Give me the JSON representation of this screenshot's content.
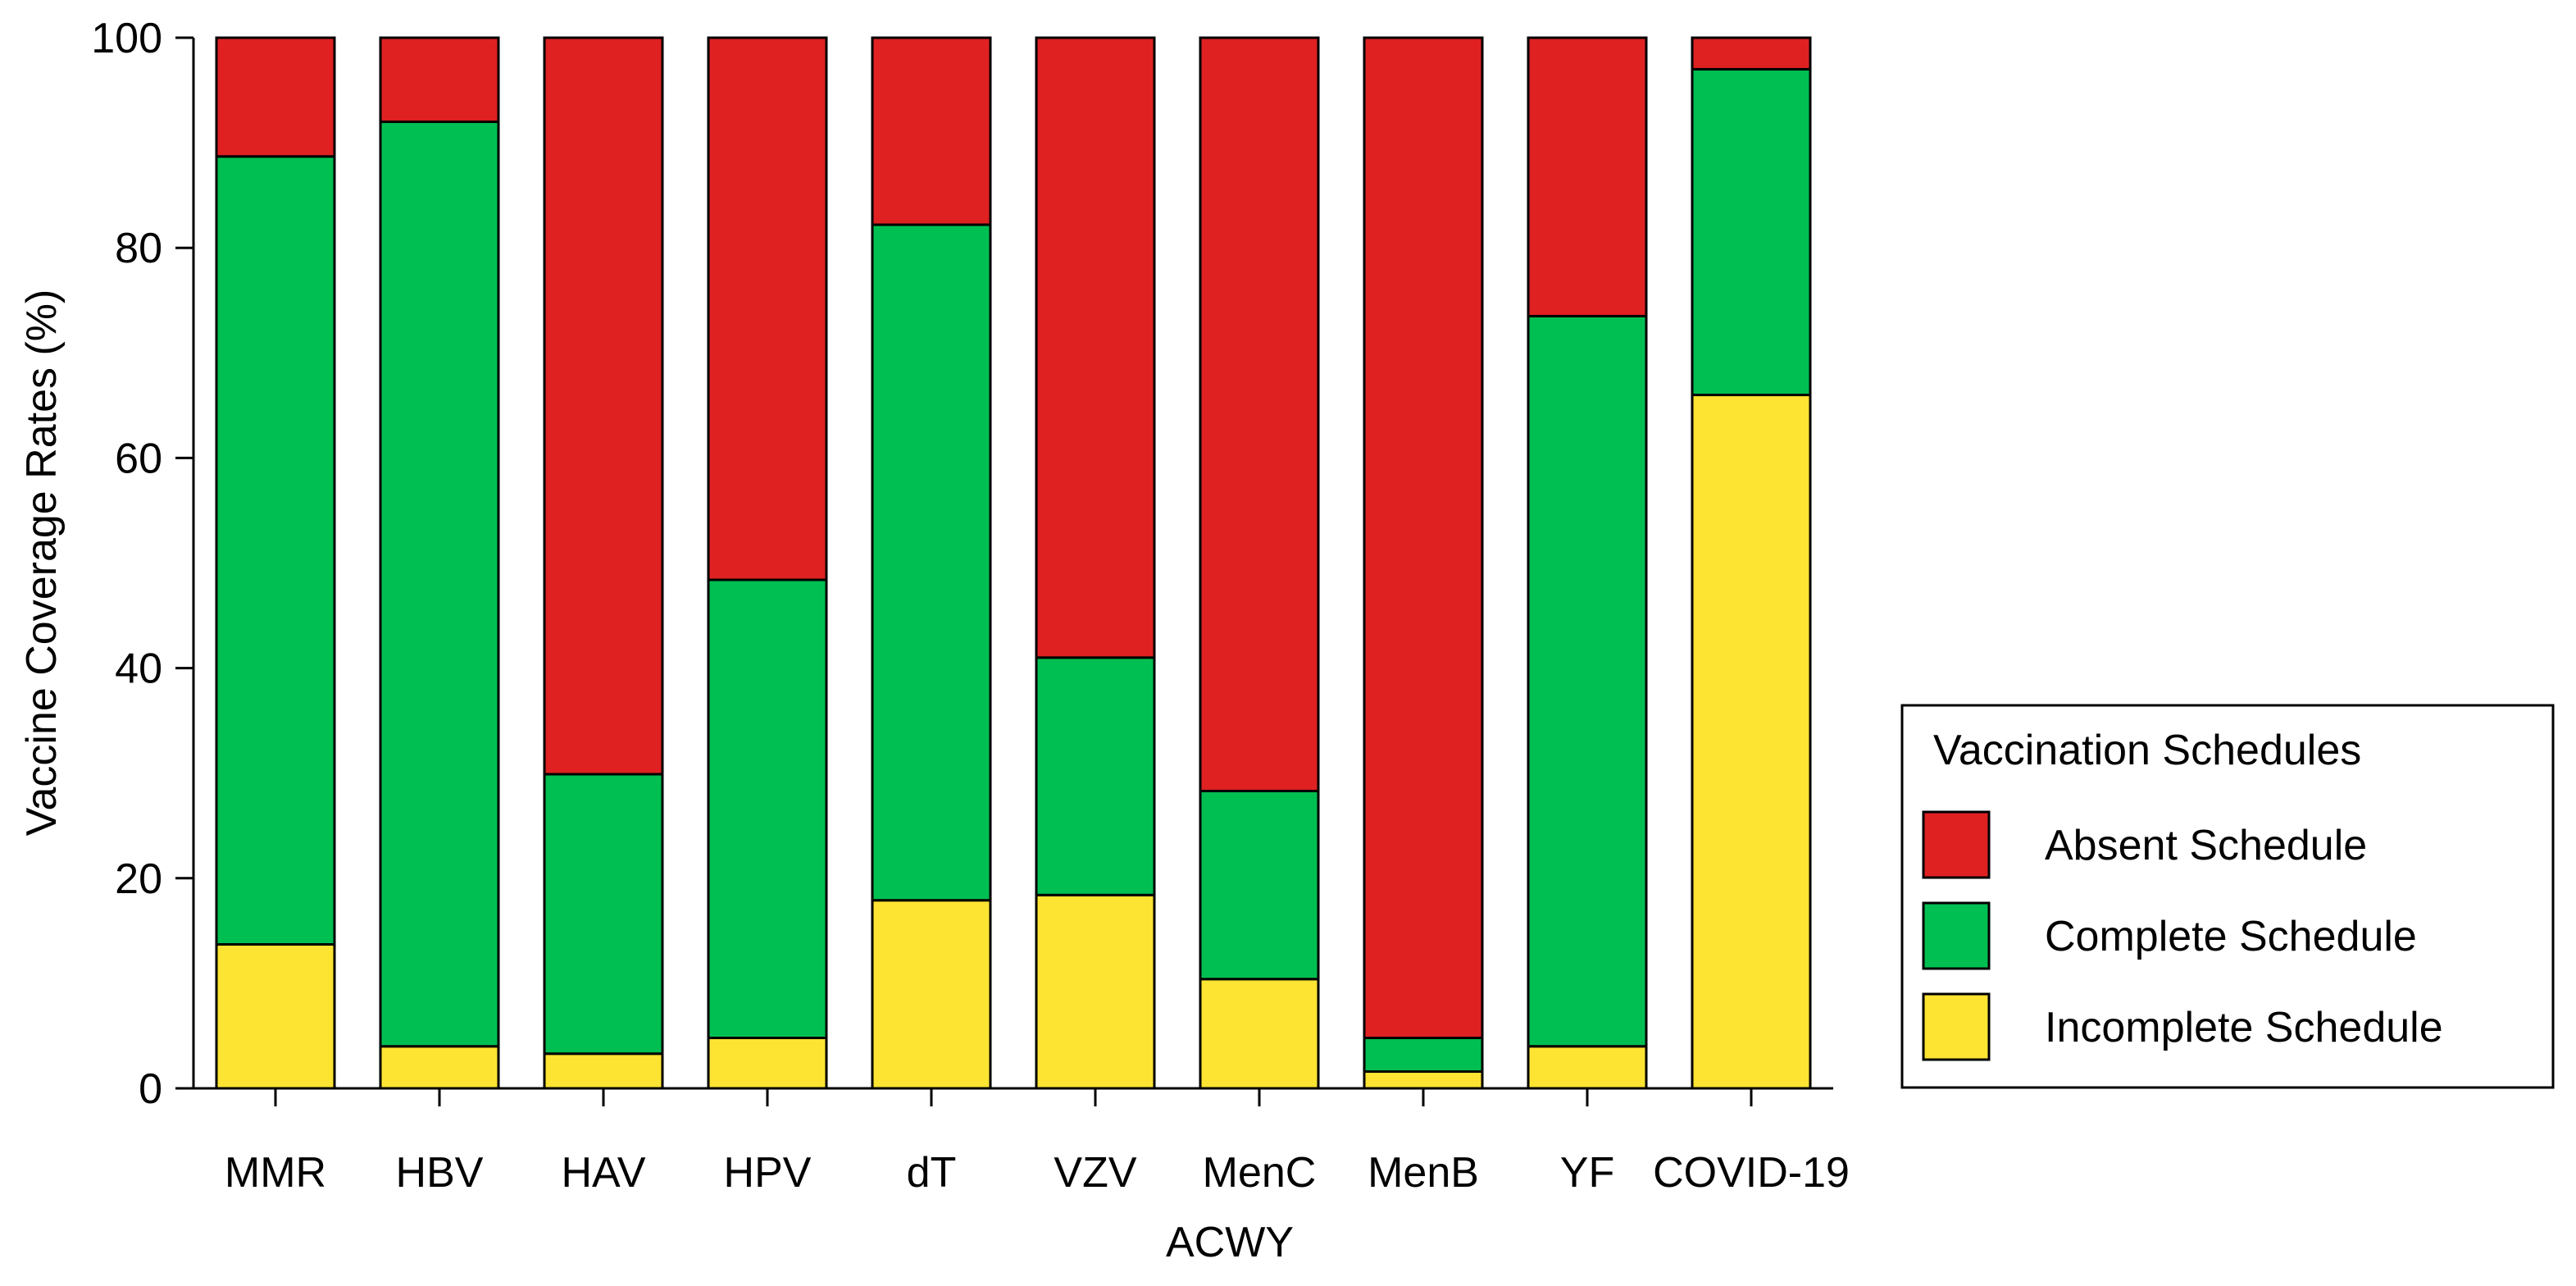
{
  "chart_data": {
    "type": "bar",
    "stacked": true,
    "title": "",
    "xlabel": "ACWY",
    "ylabel": "Vaccine Coverage Rates (%)",
    "ylim": [
      0,
      100
    ],
    "yticks": [
      0,
      20,
      40,
      60,
      80,
      100
    ],
    "categories": [
      "MMR",
      "HBV",
      "HAV",
      "HPV",
      "dT",
      "VZV",
      "MenC",
      "MenB",
      "YF",
      "COVID-19"
    ],
    "series": [
      {
        "name": "Incomplete Schedule",
        "color": "#FDE433",
        "values": [
          13.7,
          4.0,
          3.3,
          4.8,
          17.9,
          18.4,
          10.4,
          1.6,
          4.0,
          66.0
        ]
      },
      {
        "name": "Complete Schedule",
        "color": "#00BF52",
        "values": [
          75.0,
          88.0,
          26.6,
          43.6,
          64.3,
          22.6,
          17.9,
          3.2,
          69.5,
          31.0
        ]
      },
      {
        "name": "Absent Schedule",
        "color": "#DF2121",
        "values": [
          11.3,
          8.0,
          70.1,
          51.6,
          17.8,
          59.0,
          71.7,
          95.2,
          26.5,
          3.0
        ]
      }
    ],
    "legend": {
      "title": "Vaccination Schedules",
      "position": "right",
      "entries": [
        "Absent Schedule",
        "Complete Schedule",
        "Incomplete Schedule"
      ]
    }
  }
}
